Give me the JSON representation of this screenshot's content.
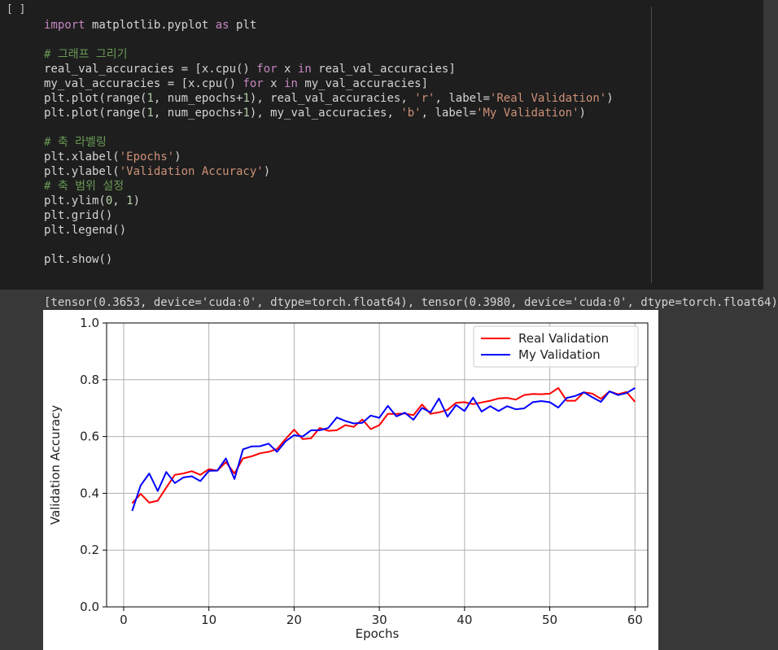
{
  "cell": {
    "run_indicator": "[ ]",
    "code_lines": [
      [
        [
          "kw",
          "import"
        ],
        [
          "fn",
          " matplotlib.pyplot "
        ],
        [
          "kw",
          "as"
        ],
        [
          "fn",
          " plt"
        ]
      ],
      [],
      [
        [
          "com",
          "# 그래프 그리기"
        ]
      ],
      [
        [
          "fn",
          "real_val_accuracies = [x.cpu() "
        ],
        [
          "kw",
          "for"
        ],
        [
          "fn",
          " x "
        ],
        [
          "kw",
          "in"
        ],
        [
          "fn",
          " real_val_accuracies]"
        ]
      ],
      [
        [
          "fn",
          "my_val_accuracies = [x.cpu() "
        ],
        [
          "kw",
          "for"
        ],
        [
          "fn",
          " x "
        ],
        [
          "kw",
          "in"
        ],
        [
          "fn",
          " my_val_accuracies]"
        ]
      ],
      [
        [
          "fn",
          "plt.plot(range("
        ],
        [
          "num",
          "1"
        ],
        [
          "fn",
          ", num_epochs+"
        ],
        [
          "num",
          "1"
        ],
        [
          "fn",
          "), real_val_accuracies, "
        ],
        [
          "str",
          "'r'"
        ],
        [
          "fn",
          ", label="
        ],
        [
          "str",
          "'Real Validation'"
        ],
        [
          "fn",
          ")"
        ]
      ],
      [
        [
          "fn",
          "plt.plot(range("
        ],
        [
          "num",
          "1"
        ],
        [
          "fn",
          ", num_epochs+"
        ],
        [
          "num",
          "1"
        ],
        [
          "fn",
          "), my_val_accuracies, "
        ],
        [
          "str",
          "'b'"
        ],
        [
          "fn",
          ", label="
        ],
        [
          "str",
          "'My Validation'"
        ],
        [
          "fn",
          ")"
        ]
      ],
      [],
      [
        [
          "com",
          "# 축 라벨링"
        ]
      ],
      [
        [
          "fn",
          "plt.xlabel("
        ],
        [
          "str",
          "'Epochs'"
        ],
        [
          "fn",
          ")"
        ]
      ],
      [
        [
          "fn",
          "plt.ylabel("
        ],
        [
          "str",
          "'Validation Accuracy'"
        ],
        [
          "fn",
          ")"
        ]
      ],
      [
        [
          "com",
          "# 축 범위 설정"
        ]
      ],
      [
        [
          "fn",
          "plt.ylim("
        ],
        [
          "num",
          "0"
        ],
        [
          "fn",
          ", "
        ],
        [
          "num",
          "1"
        ],
        [
          "fn",
          ")"
        ]
      ],
      [
        [
          "fn",
          "plt.grid()"
        ]
      ],
      [
        [
          "fn",
          "plt.legend()"
        ]
      ],
      [],
      [
        [
          "fn",
          "plt.show()"
        ]
      ]
    ]
  },
  "output": {
    "text": "[tensor(0.3653, device='cuda:0', dtype=torch.float64), tensor(0.3980, device='cuda:0', dtype=torch.float64)"
  },
  "chart_data": {
    "type": "line",
    "xlabel": "Epochs",
    "ylabel": "Validation Accuracy",
    "xlim": [
      -2,
      61.5
    ],
    "ylim": [
      0,
      1
    ],
    "xticks": [
      0,
      10,
      20,
      30,
      40,
      50,
      60
    ],
    "yticks": [
      0.0,
      0.2,
      0.4,
      0.6,
      0.8,
      1.0
    ],
    "ytick_labels": [
      "0.0",
      "0.2",
      "0.4",
      "0.6",
      "0.8",
      "1.0"
    ],
    "grid": true,
    "legend_position": "top-right",
    "x": [
      1,
      2,
      3,
      4,
      5,
      6,
      7,
      8,
      9,
      10,
      11,
      12,
      13,
      14,
      15,
      16,
      17,
      18,
      19,
      20,
      21,
      22,
      23,
      24,
      25,
      26,
      27,
      28,
      29,
      30,
      31,
      32,
      33,
      34,
      35,
      36,
      37,
      38,
      39,
      40,
      41,
      42,
      43,
      44,
      45,
      46,
      47,
      48,
      49,
      50,
      51,
      52,
      53,
      54,
      55,
      56,
      57,
      58,
      59,
      60
    ],
    "series": [
      {
        "name": "Real Validation",
        "color": "#ff0000",
        "values": [
          0.365,
          0.398,
          0.367,
          0.374,
          0.42,
          0.465,
          0.47,
          0.478,
          0.465,
          0.485,
          0.48,
          0.51,
          0.47,
          0.523,
          0.53,
          0.541,
          0.546,
          0.556,
          0.591,
          0.624,
          0.591,
          0.594,
          0.63,
          0.62,
          0.622,
          0.64,
          0.634,
          0.66,
          0.626,
          0.64,
          0.68,
          0.68,
          0.681,
          0.675,
          0.713,
          0.68,
          0.685,
          0.694,
          0.719,
          0.721,
          0.714,
          0.72,
          0.726,
          0.734,
          0.736,
          0.73,
          0.746,
          0.75,
          0.749,
          0.751,
          0.771,
          0.726,
          0.726,
          0.756,
          0.751,
          0.733,
          0.759,
          0.749,
          0.757,
          0.722
        ]
      },
      {
        "name": "My Validation",
        "color": "#0000ff",
        "values": [
          0.338,
          0.428,
          0.47,
          0.408,
          0.475,
          0.436,
          0.456,
          0.46,
          0.443,
          0.479,
          0.48,
          0.523,
          0.45,
          0.555,
          0.565,
          0.566,
          0.575,
          0.546,
          0.583,
          0.605,
          0.6,
          0.622,
          0.622,
          0.63,
          0.667,
          0.655,
          0.646,
          0.648,
          0.674,
          0.666,
          0.708,
          0.671,
          0.684,
          0.659,
          0.701,
          0.685,
          0.734,
          0.67,
          0.711,
          0.69,
          0.737,
          0.688,
          0.707,
          0.69,
          0.707,
          0.696,
          0.699,
          0.721,
          0.725,
          0.721,
          0.702,
          0.736,
          0.743,
          0.756,
          0.738,
          0.722,
          0.759,
          0.746,
          0.753,
          0.771
        ]
      }
    ]
  }
}
